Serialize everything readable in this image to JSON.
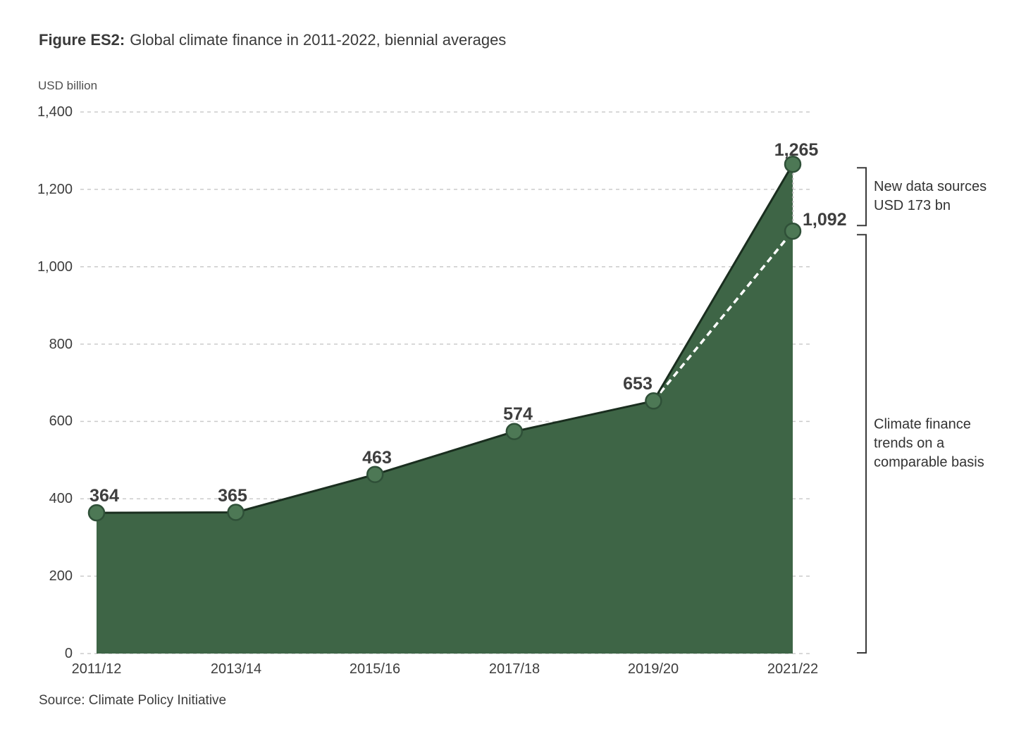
{
  "figure": {
    "label": "Figure ES2:",
    "title": "Global climate finance in 2011-2022, biennial averages",
    "axis_unit": "USD billion",
    "source": "Source: Climate Policy Initiative"
  },
  "annotations": {
    "new_data_sources": {
      "line1": "New data sources",
      "line2": "USD 173 bn"
    },
    "comparable_basis": {
      "line1": "Climate finance",
      "line2": "trends on a",
      "line3": "comparable basis"
    }
  },
  "chart_data": {
    "type": "area",
    "title": "Figure ES2: Global climate finance in 2011-2022, biennial averages",
    "xlabel": "",
    "ylabel": "USD billion",
    "ylim": [
      0,
      1400
    ],
    "grid": "horizontal-dashed",
    "legend_position": "none",
    "categories": [
      "2011/12",
      "2013/14",
      "2015/16",
      "2017/18",
      "2019/20",
      "2021/22"
    ],
    "series": [
      {
        "name": "total-climate-finance",
        "style": "green-area-solid-dark-line",
        "values": [
          364,
          365,
          463,
          574,
          653,
          1265
        ],
        "labels": [
          "364",
          "365",
          "463",
          "574",
          "653",
          "1,265"
        ]
      },
      {
        "name": "comparable-basis",
        "style": "white-dashed-line",
        "categories": [
          "2019/20",
          "2021/22"
        ],
        "values": [
          653,
          1092
        ],
        "labels": [
          "",
          "1,092"
        ]
      }
    ],
    "y_ticks": [
      {
        "label": "0",
        "value": 0
      },
      {
        "label": "200",
        "value": 200
      },
      {
        "label": "400",
        "value": 400
      },
      {
        "label": "600",
        "value": 600
      },
      {
        "label": "800",
        "value": 800
      },
      {
        "label": "1,000",
        "value": 1000
      },
      {
        "label": "1,200",
        "value": 1200
      },
      {
        "label": "1,400",
        "value": 1400
      }
    ],
    "annotations": [
      {
        "text": "New data sources USD 173 bn",
        "value_range": [
          1092,
          1265
        ]
      },
      {
        "text": "Climate finance trends on a comparable basis",
        "value_range": [
          0,
          1092
        ]
      }
    ],
    "colors": {
      "area": "#3E6546",
      "line": "#1A2E1F",
      "marker": "#4D7855",
      "marker_stroke": "#2F5038",
      "grid": "#CBCBCB",
      "dashed_line": "#FFFFFF",
      "connector": "#ADADAD",
      "bracket": "#3A3A3A",
      "label": "#3E3E3E"
    }
  }
}
